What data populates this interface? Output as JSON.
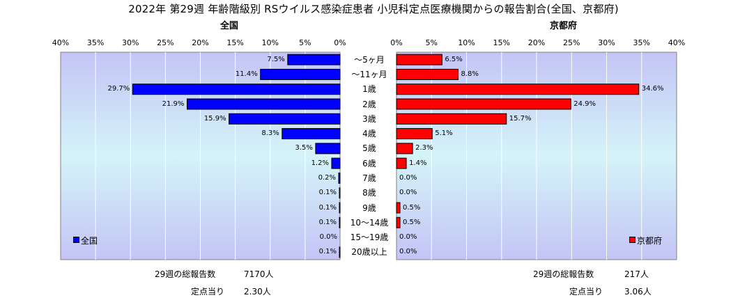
{
  "title": "2022年 第29週 年齢階級別 RSウイルス感染症患者 小児科定点医療機関からの報告割合(全国、京都府)",
  "chart_data": {
    "type": "bar",
    "categories": [
      "～5ヶ月",
      "～11ヶ月",
      "1歳",
      "2歳",
      "3歳",
      "4歳",
      "5歳",
      "6歳",
      "7歳",
      "8歳",
      "9歳",
      "10～14歳",
      "15～19歳",
      "20歳以上"
    ],
    "xlim": [
      0,
      40
    ],
    "ticks": [
      "40%",
      "35%",
      "30%",
      "25%",
      "20%",
      "15%",
      "10%",
      "5%",
      "0%"
    ],
    "ticks_right": [
      "0%",
      "5%",
      "10%",
      "15%",
      "20%",
      "25%",
      "30%",
      "35%",
      "40%"
    ],
    "series": [
      {
        "name": "全国",
        "color": "#0000ff",
        "values": [
          7.5,
          11.4,
          29.7,
          21.9,
          15.9,
          8.3,
          3.5,
          1.2,
          0.2,
          0.1,
          0.1,
          0.1,
          0.0,
          0.1
        ],
        "labels": [
          "7.5%",
          "11.4%",
          "29.7%",
          "21.9%",
          "15.9%",
          "8.3%",
          "3.5%",
          "1.2%",
          "0.2%",
          "0.1%",
          "0.1%",
          "0.1%",
          "0.0%",
          "0.1%"
        ]
      },
      {
        "name": "京都府",
        "color": "#ff0000",
        "values": [
          6.5,
          8.8,
          34.6,
          24.9,
          15.7,
          5.1,
          2.3,
          1.4,
          0.0,
          0.0,
          0.5,
          0.5,
          0.0,
          0.0
        ],
        "labels": [
          "6.5%",
          "8.8%",
          "34.6%",
          "24.9%",
          "15.7%",
          "5.1%",
          "2.3%",
          "1.4%",
          "0.0%",
          "0.0%",
          "0.5%",
          "0.5%",
          "0.0%",
          "0.0%"
        ]
      }
    ]
  },
  "panels": {
    "left": {
      "title": "全国",
      "legend": "全国",
      "total_label": "29週の総報告数",
      "total_value": "7170人",
      "per_site_label": "定点当り",
      "per_site_value": "2.30人"
    },
    "right": {
      "title": "京都府",
      "legend": "京都府",
      "total_label": "29週の総報告数",
      "total_value": "217人",
      "per_site_label": "定点当り",
      "per_site_value": "3.06人"
    }
  }
}
